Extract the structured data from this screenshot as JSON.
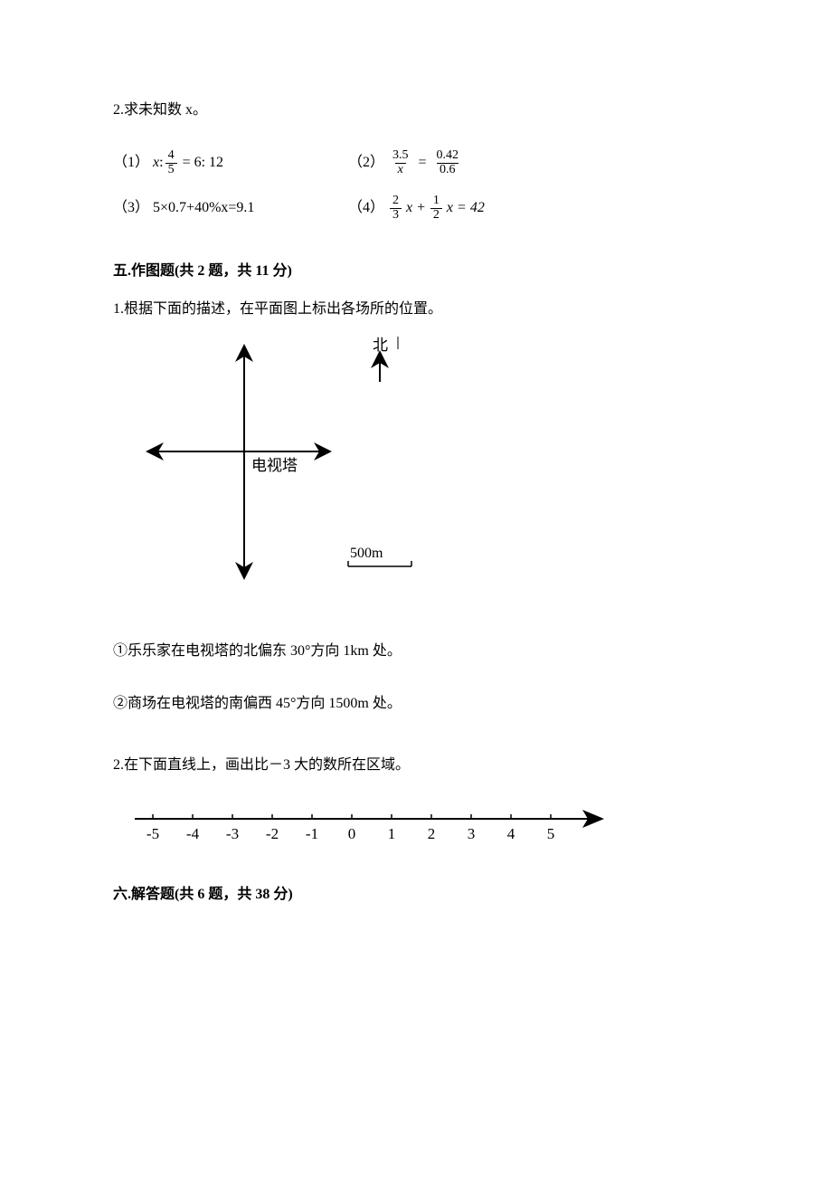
{
  "q2_title": "2.求未知数 x。",
  "eq1": {
    "prefix": "（1）",
    "lhs_var": "x",
    "lhs_colon": ":",
    "frac_num": "4",
    "frac_den": "5",
    "rhs": "= 6: 12"
  },
  "eq2": {
    "prefix": "（2）",
    "f1_num": "3.5",
    "f1_den": "x",
    "eq": "=",
    "f2_num": "0.42",
    "f2_den": "0.6"
  },
  "eq3": {
    "prefix": "（3）",
    "body": "5×0.7+40%x=9.1"
  },
  "eq4": {
    "prefix": "（4）",
    "a_num": "2",
    "a_den": "3",
    "mid": "x +",
    "b_num": "1",
    "b_den": "2",
    "rhs": "x = 42"
  },
  "section5": "五.作图题(共 2 题，共 11 分)",
  "s5_q1": "1.根据下面的描述，在平面图上标出各场所的位置。",
  "compass": {
    "north_label": "北",
    "tower_label": "电视塔",
    "scale_label": "500m"
  },
  "s5_q1_sub1": "①乐乐家在电视塔的北偏东 30°方向 1km 处。",
  "s5_q1_sub2": "②商场在电视塔的南偏西 45°方向 1500m 处。",
  "s5_q2": "2.在下面直线上，画出比－3 大的数所在区域。",
  "numline": {
    "ticks": [
      "-5",
      "-4",
      "-3",
      "-2",
      "-1",
      "0",
      "1",
      "2",
      "3",
      "4",
      "5"
    ]
  },
  "section6": "六.解答题(共 6 题，共 38 分)"
}
